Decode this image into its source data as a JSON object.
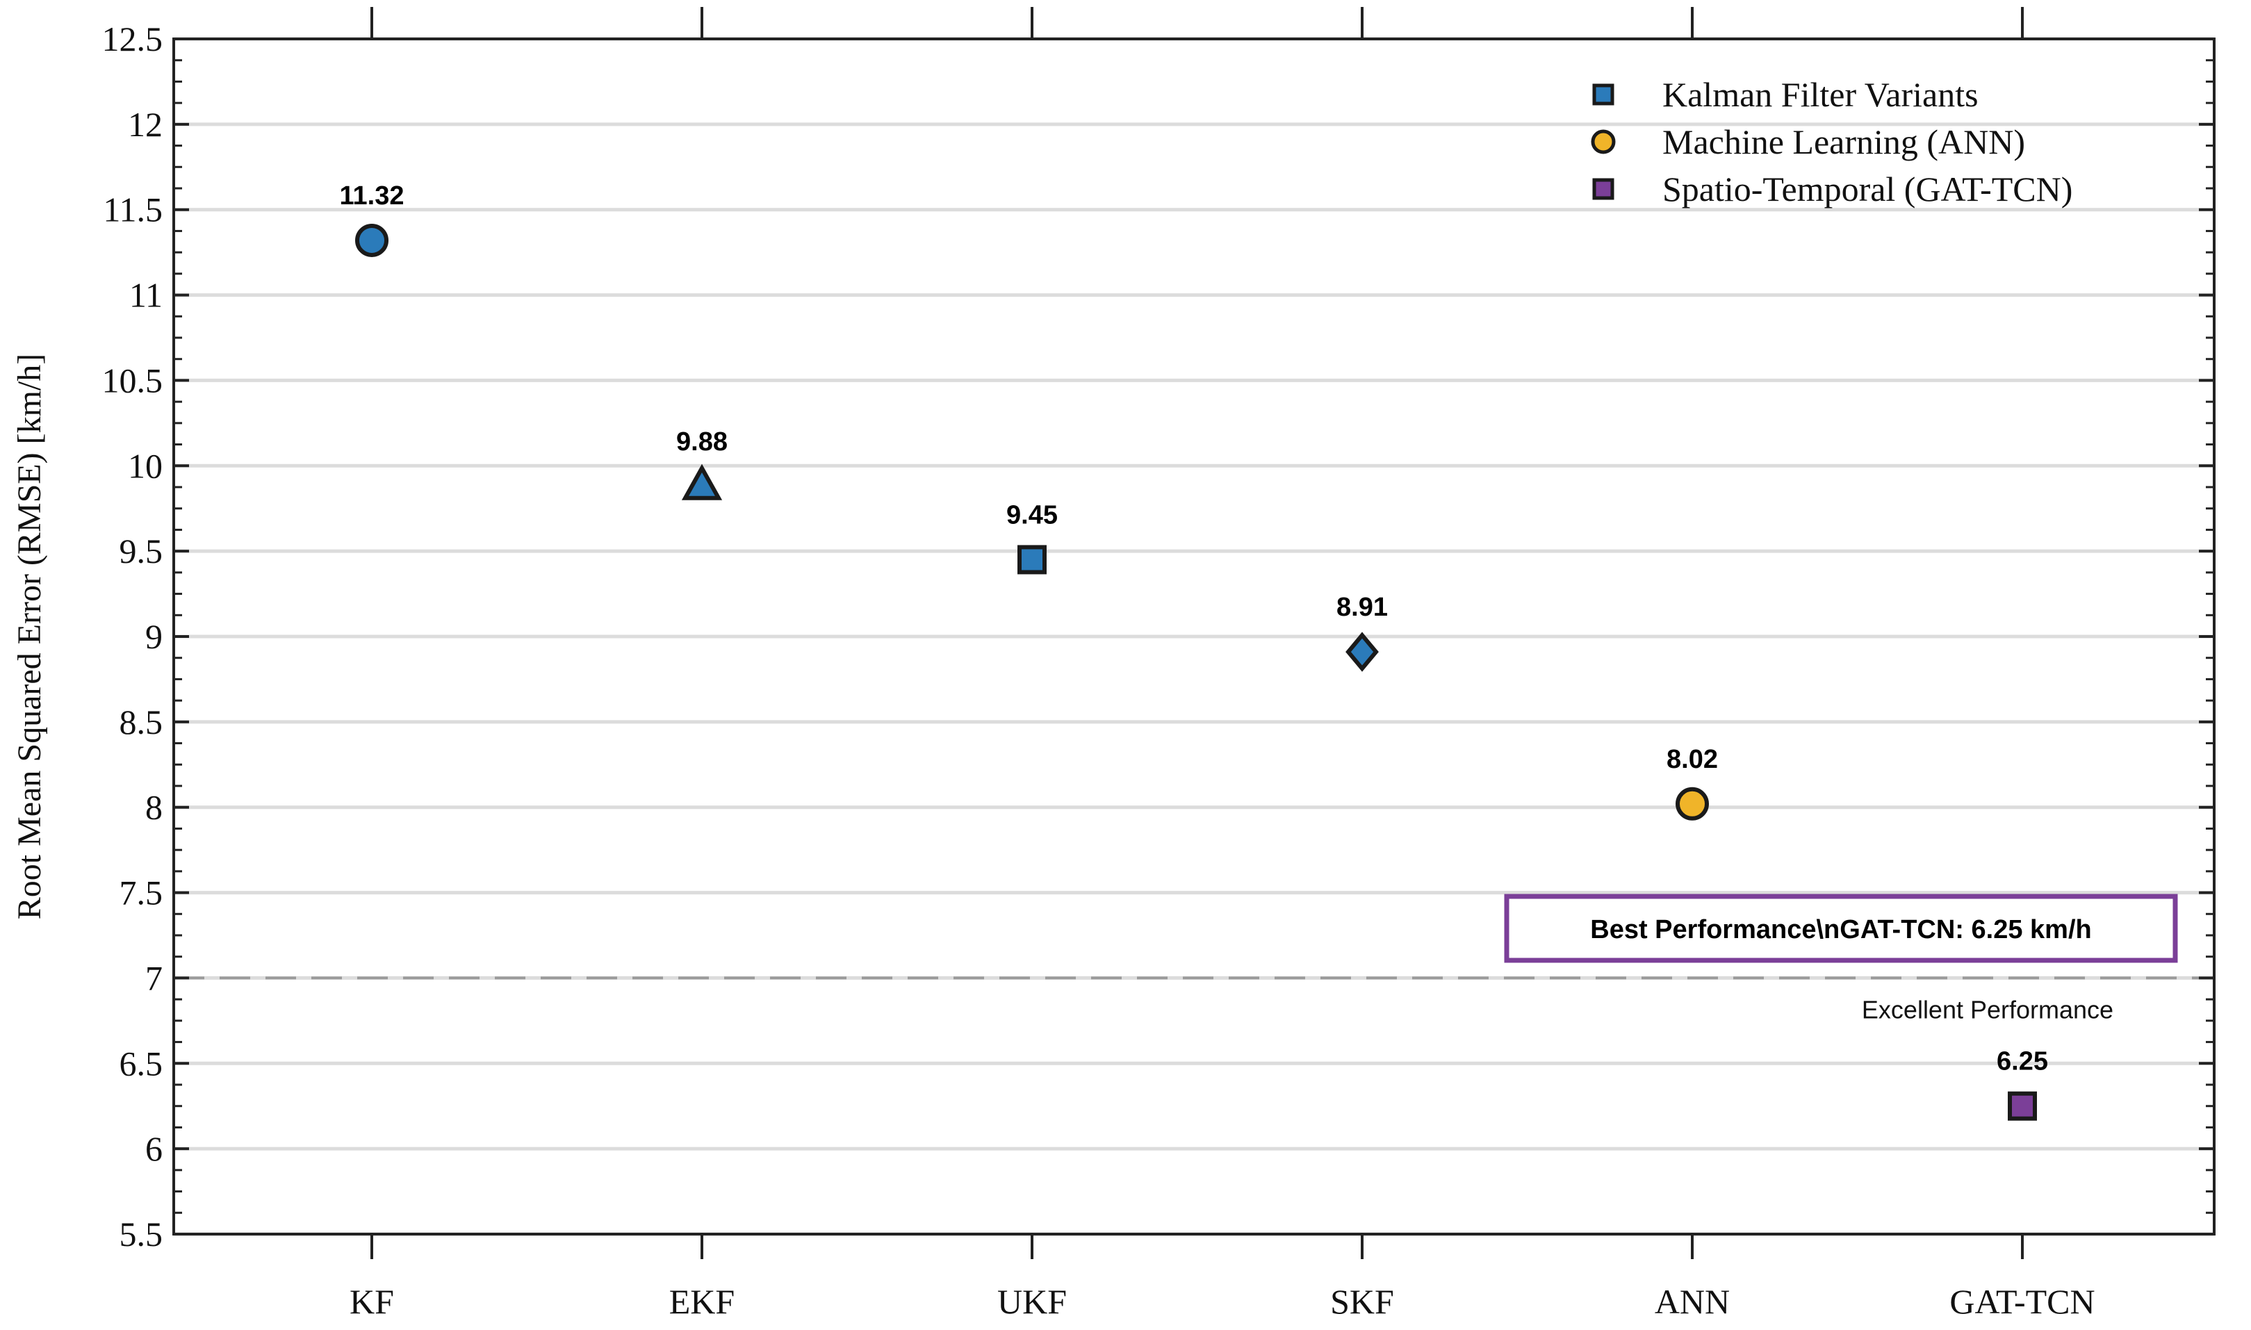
{
  "chart_data": {
    "type": "scatter",
    "title": "",
    "xlabel": "",
    "ylabel": "Root Mean Squared Error (RMSE) [km/h]",
    "ylim": [
      5.5,
      12.5
    ],
    "yticks": [
      5.5,
      6,
      6.5,
      7,
      7.5,
      8,
      8.5,
      9,
      9.5,
      10,
      10.5,
      11,
      11.5,
      12,
      12.5
    ],
    "ytick_labels": [
      "5.5",
      "6",
      "6.5",
      "7",
      "7.5",
      "8",
      "8.5",
      "9",
      "9.5",
      "10",
      "10.5",
      "11",
      "11.5",
      "12",
      "12.5"
    ],
    "grid": true,
    "categories": [
      "KF",
      "EKF",
      "UKF",
      "SKF",
      "ANN",
      "GAT-TCN"
    ],
    "points": [
      {
        "category": "KF",
        "value": 11.32,
        "label": "11.32",
        "marker": "circle",
        "color": "#2b7bba",
        "group": "Kalman Filter Variants"
      },
      {
        "category": "EKF",
        "value": 9.88,
        "label": "9.88",
        "marker": "triangle",
        "color": "#2b7bba",
        "group": "Kalman Filter Variants"
      },
      {
        "category": "UKF",
        "value": 9.45,
        "label": "9.45",
        "marker": "square",
        "color": "#2b7bba",
        "group": "Kalman Filter Variants"
      },
      {
        "category": "SKF",
        "value": 8.91,
        "label": "8.91",
        "marker": "diamond",
        "color": "#2b7bba",
        "group": "Kalman Filter Variants"
      },
      {
        "category": "ANN",
        "value": 8.02,
        "label": "8.02",
        "marker": "circle",
        "color": "#f0b429",
        "group": "Machine Learning (ANN)"
      },
      {
        "category": "GAT-TCN",
        "value": 6.25,
        "label": "6.25",
        "marker": "square",
        "color": "#7b3f98",
        "group": "Spatio-Temporal (GAT-TCN)"
      }
    ],
    "legend": {
      "position": "top-right",
      "entries": [
        {
          "label": "Kalman Filter Variants",
          "color": "#2b7bba"
        },
        {
          "label": "Machine Learning (ANN)",
          "color": "#f0b429"
        },
        {
          "label": "Spatio-Temporal (GAT-TCN)",
          "color": "#7b3f98"
        }
      ]
    },
    "reference_line": {
      "value": 7,
      "label": "Excellent Performance",
      "color": "#9a9a9a",
      "style": "dashed"
    },
    "annotation_box": {
      "text": "Best Performance\\nGAT-TCN: 6.25 km/h",
      "border_color": "#7b3f98"
    }
  }
}
